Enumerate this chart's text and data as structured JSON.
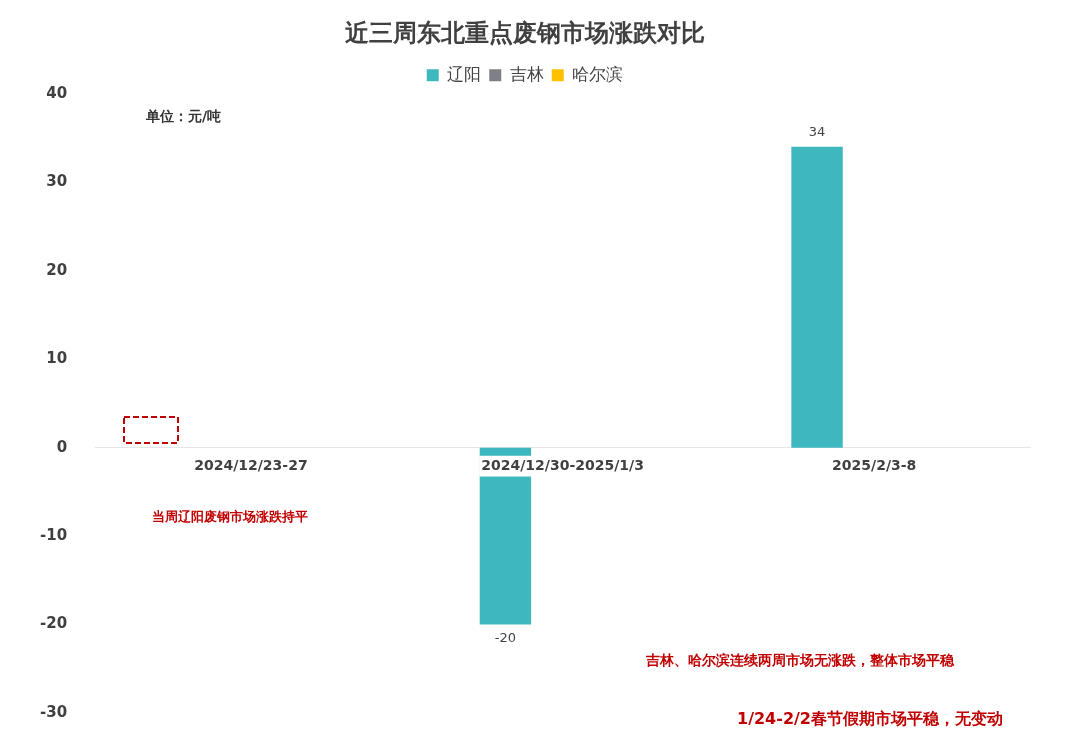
{
  "chart_data": {
    "type": "bar",
    "title": "近三周东北重点废钢市场涨跌对比",
    "ylabel": "单位：元/吨",
    "categories": [
      "2024/12/23-27",
      "2024/12/30-2025/1/3",
      "2025/2/3-8"
    ],
    "series": [
      {
        "name": "辽阳",
        "color": "#3eb7bf",
        "values": [
          0,
          -20,
          34
        ],
        "value_labels": [
          null,
          "-20",
          "34"
        ]
      },
      {
        "name": "吉林",
        "color": "#7f7f87",
        "values": [
          0,
          0,
          0
        ]
      },
      {
        "name": "哈尔滨",
        "color": "#ffc000",
        "values": [
          0,
          0,
          0
        ]
      }
    ],
    "ylim": [
      -30,
      40
    ],
    "yticks": [
      -30,
      -20,
      -10,
      0,
      10,
      20,
      30,
      40
    ],
    "grid": false,
    "legend": "top",
    "annotations": [
      "当周辽阳废钢市场涨跌持平",
      "吉林、哈尔滨连续两周市场无涨跌，整体市场平稳",
      "1/24-2/2春节假期市场平稳，无变动"
    ]
  }
}
